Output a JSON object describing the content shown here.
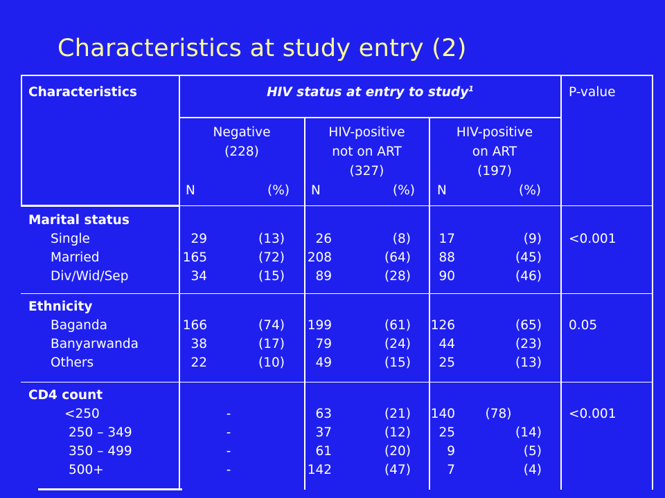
{
  "slide_title": "Characteristics at study entry (2)",
  "header": {
    "characteristics": "Characteristics",
    "hiv_status": "HIV status at entry to study",
    "hiv_status_sup": "1",
    "pvalue": "P-value",
    "groups": [
      {
        "line1": "Negative",
        "line2": "(228)",
        "line3": "",
        "n": "N",
        "pct": "(%)"
      },
      {
        "line1": "HIV-positive",
        "line2": "not on ART",
        "line3": "(327)",
        "n": "N",
        "pct": "(%)"
      },
      {
        "line1": "HIV-positive",
        "line2": "on ART",
        "line3": "(197)",
        "n": "N",
        "pct": "(%)"
      }
    ]
  },
  "sections": [
    {
      "heading": "Marital status",
      "rows": [
        {
          "label": "Single",
          "neg": [
            "29",
            "(13)"
          ],
          "notart": [
            "26",
            "(8)"
          ],
          "onart": [
            "17",
            "(9)"
          ]
        },
        {
          "label": "Married",
          "neg": [
            "165",
            "(72)"
          ],
          "notart": [
            "208",
            "(64)"
          ],
          "onart": [
            "88",
            "(45)"
          ]
        },
        {
          "label": "Div/Wid/Sep",
          "neg": [
            "34",
            "(15)"
          ],
          "notart": [
            "89",
            "(28)"
          ],
          "onart": [
            "90",
            "(46)"
          ]
        }
      ],
      "pvalue": "<0.001"
    },
    {
      "heading": "Ethnicity",
      "rows": [
        {
          "label": "Baganda",
          "neg": [
            "166",
            "(74)"
          ],
          "notart": [
            "199",
            "(61)"
          ],
          "onart": [
            "126",
            "(65)"
          ]
        },
        {
          "label": "Banyarwanda",
          "neg": [
            "38",
            "(17)"
          ],
          "notart": [
            "79",
            "(24)"
          ],
          "onart": [
            "44",
            "(23)"
          ]
        },
        {
          "label": "Others",
          "neg": [
            "22",
            "(10)"
          ],
          "notart": [
            "49",
            "(15)"
          ],
          "onart": [
            "25",
            "(13)"
          ]
        }
      ],
      "pvalue": "0.05"
    },
    {
      "heading": "CD4 count",
      "rows": [
        {
          "label": "<250",
          "neg": [
            "-",
            ""
          ],
          "notart": [
            "63",
            "(21)"
          ],
          "onart": [
            "140",
            "(78)"
          ]
        },
        {
          "label": "250 – 349",
          "neg": [
            "-",
            ""
          ],
          "notart": [
            "37",
            "(12)"
          ],
          "onart": [
            "25",
            "(14)"
          ]
        },
        {
          "label": "350 – 499",
          "neg": [
            "-",
            ""
          ],
          "notart": [
            "61",
            "(20)"
          ],
          "onart": [
            "9",
            "(5)"
          ]
        },
        {
          "label": "500+",
          "neg": [
            "-",
            ""
          ],
          "notart": [
            "142",
            "(47)"
          ],
          "onart": [
            "7",
            "(4)"
          ]
        }
      ],
      "pvalue": "<0.001"
    }
  ]
}
